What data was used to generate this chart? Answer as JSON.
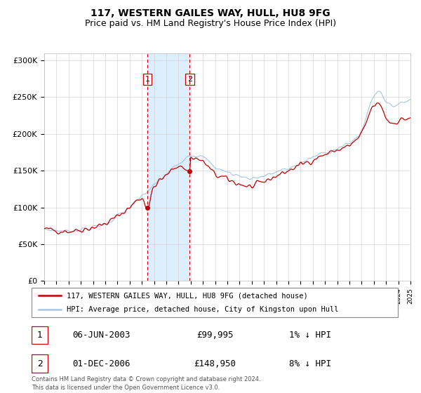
{
  "title": "117, WESTERN GAILES WAY, HULL, HU8 9FG",
  "subtitle": "Price paid vs. HM Land Registry's House Price Index (HPI)",
  "legend_line1": "117, WESTERN GAILES WAY, HULL, HU8 9FG (detached house)",
  "legend_line2": "HPI: Average price, detached house, City of Kingston upon Hull",
  "footer1": "Contains HM Land Registry data © Crown copyright and database right 2024.",
  "footer2": "This data is licensed under the Open Government Licence v3.0.",
  "sale1_label": "1",
  "sale1_date": "06-JUN-2003",
  "sale1_price": "£99,995",
  "sale1_hpi": "1% ↓ HPI",
  "sale1_year": 2003.44,
  "sale1_value": 99995,
  "sale2_label": "2",
  "sale2_date": "01-DEC-2006",
  "sale2_price": "£148,950",
  "sale2_hpi": "8% ↓ HPI",
  "sale2_year": 2006.92,
  "sale2_value": 148950,
  "hpi_color": "#a8c4e0",
  "price_color": "#c00000",
  "sale_dot_color": "#c00000",
  "shade_color": "#ddeeff",
  "vline_color": "#cc0000",
  "box_color": "#cc0000",
  "grid_color": "#cccccc",
  "yticks": [
    0,
    50000,
    100000,
    150000,
    200000,
    250000,
    300000
  ],
  "ytick_labels": [
    "£0",
    "£50K",
    "£100K",
    "£150K",
    "£200K",
    "£250K",
    "£300K"
  ],
  "ylim": [
    0,
    310000
  ],
  "xlim_start": 1995,
  "xlim_end": 2025,
  "title_fontsize": 10,
  "subtitle_fontsize": 9
}
